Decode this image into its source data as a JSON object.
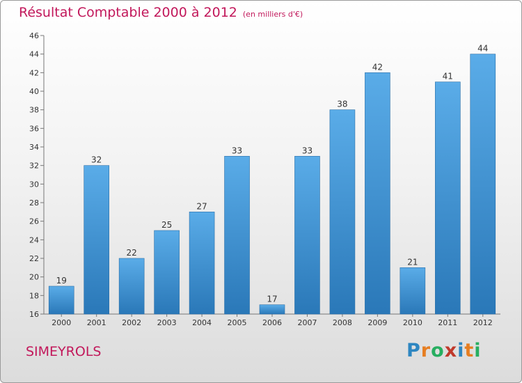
{
  "chart_data": {
    "type": "bar",
    "title": "Résultat Comptable 2000 à 2012",
    "subtitle": "(en milliers d'€)",
    "categories": [
      "2000",
      "2001",
      "2002",
      "2003",
      "2004",
      "2005",
      "2006",
      "2007",
      "2008",
      "2009",
      "2010",
      "2011",
      "2012"
    ],
    "values": [
      19,
      32,
      22,
      25,
      27,
      33,
      17,
      33,
      38,
      42,
      21,
      41,
      44
    ],
    "ylim": [
      16,
      46
    ],
    "yticks": [
      16,
      18,
      20,
      22,
      24,
      26,
      28,
      30,
      32,
      34,
      36,
      38,
      40,
      42,
      44,
      46
    ],
    "grid": false,
    "colors": {
      "bar_top": "#5aace8",
      "bar_bottom": "#2a78b8",
      "title": "#c2185b"
    }
  },
  "commune": "SIMEYROLS",
  "logo": {
    "text": "Proxiti",
    "letter_colors": [
      "#2e86c1",
      "#e67e22",
      "#27ae60",
      "#c0392b",
      "#2e86c1",
      "#e67e22",
      "#27ae60"
    ]
  }
}
